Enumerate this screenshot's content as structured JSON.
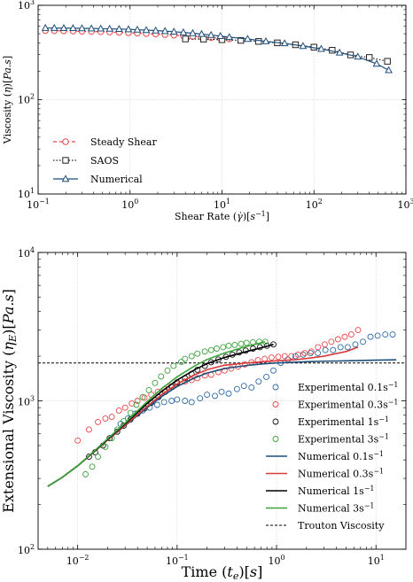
{
  "chart_data": [
    {
      "type": "line",
      "xlabel": "Shear Rate ($\\dot{\\gamma}$)[$s^{-1}$]",
      "xlabel_display": "Shear Rate (γ̇)[s⁻¹]",
      "ylabel": "Viscosity ($\\eta$)[$Pa.s$]",
      "ylabel_display": "Viscosity (η)[Pa.s]",
      "x_scale": "log",
      "y_scale": "log",
      "xlim": [
        0.1,
        1000
      ],
      "ylim": [
        10,
        1000
      ],
      "x_ticks": [
        {
          "value": 0.1,
          "base": "10",
          "exp": "−1"
        },
        {
          "value": 1,
          "base": "10",
          "exp": "0"
        },
        {
          "value": 10,
          "base": "10",
          "exp": "1"
        },
        {
          "value": 100,
          "base": "10",
          "exp": "2"
        },
        {
          "value": 1000,
          "base": "10",
          "exp": "3"
        }
      ],
      "y_ticks": [
        {
          "value": 10,
          "base": "10",
          "exp": "1"
        },
        {
          "value": 100,
          "base": "10",
          "exp": "2"
        },
        {
          "value": 1000,
          "base": "10",
          "exp": "3"
        }
      ],
      "grid": true,
      "legend_position": "lower-left",
      "series": [
        {
          "name": "Steady Shear",
          "color": "#e8474b",
          "line": "dashed",
          "marker": "circle",
          "x": [
            0.12,
            0.15,
            0.19,
            0.24,
            0.3,
            0.38,
            0.48,
            0.6,
            0.76,
            0.96,
            1.2,
            1.5,
            1.9,
            2.4,
            3.0,
            3.8,
            4.8,
            6.0,
            7.6,
            9.6,
            12
          ],
          "y": [
            540,
            538,
            536,
            534,
            531,
            528,
            525,
            521,
            517,
            512,
            507,
            501,
            495,
            489,
            482,
            475,
            468,
            461,
            454,
            447,
            440
          ]
        },
        {
          "name": "SAOS",
          "color": "#222222",
          "line": "dotted",
          "marker": "square",
          "x": [
            4.0,
            6.3,
            10,
            16,
            25,
            40,
            63,
            100,
            158,
            250,
            400,
            630
          ],
          "y": [
            440,
            438,
            432,
            425,
            414,
            400,
            382,
            360,
            334,
            298,
            280,
            255
          ]
        },
        {
          "name": "Numerical",
          "color": "#1f4e79",
          "line": "solid",
          "marker": "triangle",
          "x": [
            0.12,
            0.15,
            0.19,
            0.24,
            0.3,
            0.38,
            0.48,
            0.6,
            0.76,
            0.96,
            1.2,
            1.5,
            1.9,
            2.4,
            3.0,
            3.8,
            4.8,
            6.0,
            7.6,
            9.6,
            12,
            19,
            30,
            48,
            76,
            120,
            190,
            300,
            480,
            650
          ],
          "y": [
            575,
            574,
            573,
            572,
            570,
            568,
            566,
            563,
            560,
            556,
            551,
            546,
            540,
            533,
            525,
            516,
            506,
            496,
            484,
            472,
            460,
            440,
            415,
            395,
            370,
            345,
            315,
            285,
            240,
            205
          ]
        }
      ]
    },
    {
      "type": "scatter",
      "xlabel": "Time ($t_e$)[$s$]",
      "xlabel_display": "Time (tₑ)[s]",
      "ylabel": "Extensional Viscosity ($\\eta_E$)[$Pa.s$]",
      "ylabel_display": "Extensional Viscosity (η_E)[Pa.s]",
      "x_scale": "log",
      "y_scale": "log",
      "xlim": [
        0.004,
        20
      ],
      "ylim": [
        100,
        10000
      ],
      "x_ticks": [
        {
          "value": 0.01,
          "base": "10",
          "exp": "−2"
        },
        {
          "value": 0.1,
          "base": "10",
          "exp": "−1"
        },
        {
          "value": 1,
          "base": "10",
          "exp": "0"
        },
        {
          "value": 10,
          "base": "10",
          "exp": "1"
        }
      ],
      "y_ticks": [
        {
          "value": 100,
          "base": "10",
          "exp": "2"
        },
        {
          "value": 1000,
          "base": "10",
          "exp": "3"
        },
        {
          "value": 10000,
          "base": "10",
          "exp": "4"
        }
      ],
      "grid": true,
      "legend_position": "lower-right",
      "trouton": {
        "name": "Trouton Viscosity",
        "value": 1800,
        "color": "#000000"
      },
      "series": [
        {
          "name": "Experimental 0.1s⁻¹",
          "name_base": "Experimental 0.1s",
          "name_sup": "−1",
          "kind": "markers",
          "color": "#2e6aa6",
          "x": [
            0.027,
            0.032,
            0.038,
            0.045,
            0.053,
            0.063,
            0.074,
            0.088,
            0.1,
            0.12,
            0.14,
            0.17,
            0.2,
            0.24,
            0.28,
            0.33,
            0.4,
            0.47,
            0.56,
            0.66,
            0.79,
            0.93,
            1.1,
            1.3,
            1.55,
            1.85,
            2.2,
            2.6,
            3.1,
            3.7,
            4.4,
            5.2,
            6.2,
            7.4,
            8.8,
            10.4,
            12.4,
            14.7
          ],
          "y": [
            700,
            760,
            820,
            860,
            900,
            940,
            980,
            1000,
            1020,
            1000,
            980,
            1040,
            1100,
            1080,
            1150,
            1120,
            1200,
            1260,
            1230,
            1350,
            1450,
            1600,
            1800,
            1900,
            2000,
            2050,
            2100,
            2100,
            2200,
            2200,
            2300,
            2300,
            2400,
            2500,
            2700,
            2750,
            2800,
            2800
          ]
        },
        {
          "name": "Experimental 0.3s⁻¹",
          "name_base": "Experimental 0.3s",
          "name_sup": "−1",
          "kind": "markers",
          "color": "#e8474b",
          "x": [
            0.01,
            0.013,
            0.016,
            0.019,
            0.022,
            0.026,
            0.03,
            0.035,
            0.04,
            0.047,
            0.055,
            0.064,
            0.075,
            0.087,
            0.1,
            0.12,
            0.14,
            0.16,
            0.19,
            0.22,
            0.26,
            0.3,
            0.35,
            0.41,
            0.48,
            0.56,
            0.65,
            0.76,
            0.89,
            1.04,
            1.21,
            1.41,
            1.65,
            1.92,
            2.24,
            2.61,
            3.05,
            3.56,
            4.15,
            4.85,
            5.65,
            6.6
          ],
          "y": [
            540,
            640,
            720,
            760,
            780,
            860,
            900,
            960,
            1000,
            1050,
            1100,
            1150,
            1200,
            1250,
            1300,
            1350,
            1380,
            1420,
            1480,
            1500,
            1560,
            1600,
            1650,
            1700,
            1760,
            1820,
            1880,
            1920,
            1960,
            1980,
            2000,
            2000,
            2050,
            2100,
            2150,
            2300,
            2400,
            2500,
            2600,
            2700,
            2800,
            3000
          ]
        },
        {
          "name": "Experimental 1s⁻¹",
          "name_base": "Experimental 1s",
          "name_sup": "−1",
          "kind": "markers",
          "color": "#111111",
          "x": [
            0.013,
            0.015,
            0.018,
            0.021,
            0.025,
            0.029,
            0.034,
            0.04,
            0.047,
            0.055,
            0.065,
            0.076,
            0.089,
            0.1,
            0.12,
            0.14,
            0.16,
            0.19,
            0.22,
            0.26,
            0.31,
            0.36,
            0.42,
            0.49,
            0.58,
            0.68,
            0.8,
            0.93
          ],
          "y": [
            420,
            450,
            500,
            560,
            620,
            680,
            750,
            820,
            890,
            970,
            1060,
            1150,
            1240,
            1330,
            1420,
            1520,
            1620,
            1720,
            1820,
            1900,
            1980,
            2050,
            2120,
            2180,
            2250,
            2300,
            2350,
            2400
          ]
        },
        {
          "name": "Experimental 3s⁻¹",
          "name_base": "Experimental 3s",
          "name_sup": "−1",
          "kind": "markers",
          "color": "#3ba33b",
          "x": [
            0.012,
            0.014,
            0.016,
            0.019,
            0.022,
            0.025,
            0.029,
            0.034,
            0.039,
            0.045,
            0.052,
            0.06,
            0.069,
            0.08,
            0.092,
            0.11,
            0.12,
            0.14,
            0.16,
            0.19,
            0.22,
            0.25,
            0.29,
            0.33,
            0.38,
            0.44,
            0.5,
            0.58,
            0.67,
            0.77
          ],
          "y": [
            320,
            360,
            420,
            490,
            560,
            640,
            730,
            830,
            940,
            1060,
            1180,
            1320,
            1460,
            1600,
            1720,
            1830,
            1920,
            2000,
            2080,
            2150,
            2200,
            2250,
            2300,
            2350,
            2380,
            2420,
            2460,
            2480,
            2500,
            2500
          ]
        },
        {
          "name": "Numerical 0.1s⁻¹",
          "name_base": "Numerical 0.1s",
          "name_sup": "−1",
          "kind": "line",
          "color": "#1f4e79",
          "x": [
            0.005,
            0.007,
            0.01,
            0.015,
            0.02,
            0.03,
            0.05,
            0.07,
            0.1,
            0.15,
            0.2,
            0.3,
            0.5,
            0.7,
            1,
            1.5,
            2,
            3,
            5,
            7,
            10,
            16
          ],
          "y": [
            265,
            305,
            365,
            460,
            545,
            680,
            900,
            1070,
            1250,
            1430,
            1540,
            1650,
            1730,
            1770,
            1800,
            1820,
            1835,
            1850,
            1860,
            1870,
            1880,
            1890
          ]
        },
        {
          "name": "Numerical 0.3s⁻¹",
          "name_base": "Numerical 0.3s",
          "name_sup": "−1",
          "kind": "line",
          "color": "#d93a3a",
          "x": [
            0.005,
            0.007,
            0.01,
            0.015,
            0.02,
            0.03,
            0.05,
            0.07,
            0.1,
            0.15,
            0.2,
            0.3,
            0.5,
            0.7,
            1,
            1.5,
            2,
            3,
            5,
            6.6
          ],
          "y": [
            265,
            305,
            365,
            460,
            545,
            685,
            920,
            1100,
            1300,
            1500,
            1620,
            1740,
            1800,
            1830,
            1860,
            1890,
            1930,
            2000,
            2150,
            2300
          ]
        },
        {
          "name": "Numerical 1s⁻¹",
          "name_base": "Numerical 1s",
          "name_sup": "−1",
          "kind": "line",
          "color": "#000000",
          "x": [
            0.005,
            0.007,
            0.01,
            0.015,
            0.02,
            0.03,
            0.05,
            0.07,
            0.1,
            0.15,
            0.2,
            0.3,
            0.5,
            0.7,
            0.93
          ],
          "y": [
            265,
            305,
            365,
            462,
            550,
            700,
            960,
            1160,
            1380,
            1620,
            1780,
            1960,
            2150,
            2280,
            2400
          ]
        },
        {
          "name": "Numerical 3s⁻¹",
          "name_base": "Numerical 3s",
          "name_sup": "−1",
          "kind": "line",
          "color": "#3ba33b",
          "x": [
            0.005,
            0.007,
            0.01,
            0.015,
            0.02,
            0.03,
            0.05,
            0.07,
            0.1,
            0.15,
            0.2,
            0.3,
            0.5,
            0.77
          ],
          "y": [
            265,
            305,
            365,
            465,
            555,
            710,
            990,
            1210,
            1450,
            1720,
            1900,
            2100,
            2330,
            2500
          ]
        }
      ]
    }
  ]
}
